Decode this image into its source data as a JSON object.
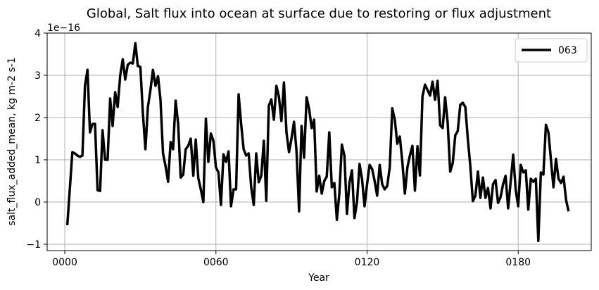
{
  "chart_data": {
    "type": "line",
    "title": "Global, Salt flux into ocean at surface due to restoring or flux adjustment",
    "xlabel": "Year",
    "ylabel": "salt_flux_added_mean, kg m-2 s-1",
    "y_multiplier_label": "1e−16",
    "xlim": [
      -7,
      209
    ],
    "ylim": [
      -1.15,
      4.0
    ],
    "x_ticks": [
      0,
      60,
      120,
      180
    ],
    "x_tick_labels": [
      "0000",
      "0060",
      "0120",
      "0180"
    ],
    "y_ticks": [
      -1,
      0,
      1,
      2,
      3,
      4
    ],
    "y_tick_labels": [
      "−1",
      "0",
      "1",
      "2",
      "3",
      "4"
    ],
    "grid": true,
    "legend_position": "upper right",
    "series": [
      {
        "name": "063",
        "color": "#000000",
        "x": [
          1,
          3,
          4,
          5,
          6,
          7,
          8,
          9,
          10,
          11,
          12,
          13,
          14,
          15,
          16,
          17,
          18,
          19,
          20,
          21,
          22,
          23,
          24,
          25,
          26,
          27,
          28,
          29,
          30,
          31,
          32,
          33,
          34,
          35,
          36,
          37,
          38,
          39,
          40,
          41,
          42,
          43,
          44,
          45,
          46,
          47,
          48,
          49,
          50,
          51,
          52,
          53,
          54,
          55,
          56,
          57,
          58,
          59,
          60,
          61,
          62,
          63,
          64,
          65,
          66,
          67,
          68,
          69,
          70,
          71,
          72,
          73,
          74,
          75,
          76,
          77,
          78,
          79,
          80,
          81,
          82,
          83,
          84,
          85,
          86,
          87,
          88,
          89,
          90,
          91,
          92,
          93,
          94,
          95,
          96,
          97,
          98,
          99,
          100,
          101,
          102,
          103,
          104,
          105,
          106,
          107,
          108,
          109,
          110,
          111,
          112,
          113,
          114,
          115,
          116,
          117,
          118,
          119,
          120,
          121,
          122,
          123,
          124,
          125,
          126,
          127,
          128,
          129,
          130,
          131,
          132,
          133,
          134,
          135,
          136,
          137,
          138,
          139,
          140,
          141,
          142,
          143,
          144,
          145,
          146,
          147,
          148,
          149,
          150,
          151,
          152,
          153,
          154,
          155,
          156,
          157,
          158,
          159,
          160,
          161,
          162,
          163,
          164,
          165,
          166,
          167,
          168,
          169,
          170,
          171,
          172,
          173,
          174,
          175,
          176,
          177,
          178,
          179,
          180,
          181,
          182,
          183,
          184,
          185,
          186,
          187,
          188,
          189,
          190,
          191,
          192,
          193,
          194,
          195,
          196,
          197,
          198,
          199,
          200
        ],
        "values": [
          -0.55,
          1.18,
          1.15,
          1.1,
          1.07,
          1.1,
          2.75,
          3.13,
          1.65,
          1.85,
          1.85,
          0.28,
          0.26,
          1.7,
          1.0,
          1.0,
          2.45,
          1.8,
          2.6,
          2.25,
          3.0,
          3.38,
          2.9,
          3.25,
          3.3,
          3.28,
          3.76,
          3.22,
          3.2,
          2.1,
          1.25,
          2.25,
          2.65,
          3.13,
          2.75,
          2.98,
          2.42,
          1.15,
          0.85,
          0.48,
          1.42,
          1.25,
          2.4,
          1.85,
          0.58,
          0.65,
          1.25,
          1.33,
          1.5,
          0.62,
          1.48,
          0.57,
          0.3,
          0.0,
          1.97,
          0.95,
          1.62,
          1.45,
          0.82,
          0.7,
          -0.07,
          1.13,
          0.95,
          1.2,
          -0.1,
          0.3,
          0.3,
          2.55,
          1.85,
          1.25,
          1.1,
          1.15,
          0.35,
          -0.07,
          1.15,
          0.47,
          0.62,
          1.45,
          0.03,
          2.28,
          2.43,
          1.95,
          2.75,
          2.5,
          1.92,
          2.83,
          1.65,
          1.18,
          1.5,
          1.9,
          1.2,
          -0.22,
          1.8,
          1.05,
          2.48,
          2.2,
          1.75,
          1.95,
          0.25,
          0.62,
          0.2,
          0.5,
          0.6,
          1.65,
          0.35,
          0.45,
          -0.42,
          0.2,
          1.36,
          1.1,
          -0.28,
          0.45,
          0.75,
          -0.38,
          0.0,
          0.9,
          0.55,
          -0.1,
          0.42,
          0.88,
          0.78,
          0.5,
          0.15,
          0.88,
          0.42,
          0.3,
          0.38,
          0.82,
          2.22,
          1.95,
          1.38,
          1.55,
          0.95,
          0.2,
          0.82,
          1.1,
          1.33,
          0.27,
          1.32,
          0.63,
          2.5,
          2.78,
          2.65,
          2.52,
          2.85,
          2.42,
          2.87,
          1.82,
          1.75,
          2.48,
          1.88,
          0.72,
          0.92,
          1.58,
          1.68,
          2.3,
          2.35,
          2.25,
          1.5,
          0.85,
          0.02,
          0.15,
          0.72,
          0.1,
          0.58,
          0.1,
          0.33,
          -0.15,
          0.42,
          0.52,
          -0.02,
          0.12,
          0.42,
          0.62,
          -0.15,
          0.48,
          1.12,
          0.3,
          -0.1,
          0.88,
          0.7,
          0.75,
          -0.18,
          0.55,
          0.48,
          0.55,
          -0.92,
          0.7,
          0.65,
          1.83,
          1.65,
          1.0,
          0.35,
          1.02,
          0.55,
          0.45,
          0.6,
          0.05,
          -0.22
        ]
      }
    ]
  }
}
